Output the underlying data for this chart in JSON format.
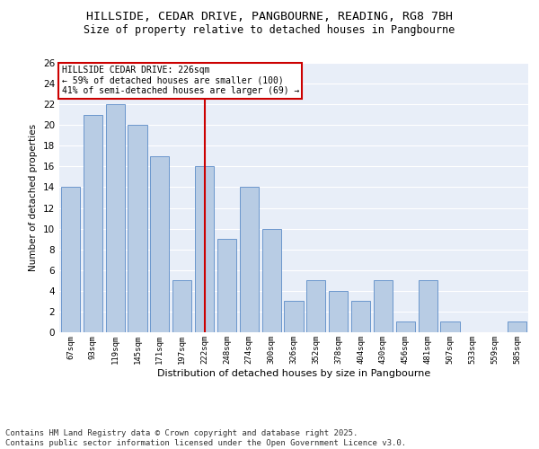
{
  "title": "HILLSIDE, CEDAR DRIVE, PANGBOURNE, READING, RG8 7BH",
  "subtitle": "Size of property relative to detached houses in Pangbourne",
  "xlabel": "Distribution of detached houses by size in Pangbourne",
  "ylabel": "Number of detached properties",
  "categories": [
    "67sqm",
    "93sqm",
    "119sqm",
    "145sqm",
    "171sqm",
    "197sqm",
    "222sqm",
    "248sqm",
    "274sqm",
    "300sqm",
    "326sqm",
    "352sqm",
    "378sqm",
    "404sqm",
    "430sqm",
    "456sqm",
    "481sqm",
    "507sqm",
    "533sqm",
    "559sqm",
    "585sqm"
  ],
  "values": [
    14,
    21,
    22,
    20,
    17,
    5,
    16,
    9,
    14,
    10,
    3,
    5,
    4,
    3,
    5,
    1,
    5,
    1,
    0,
    0,
    1
  ],
  "bar_color": "#b8cce4",
  "bar_edge_color": "#5b8bc7",
  "vline_x": 6,
  "vline_color": "#cc0000",
  "annotation_title": "HILLSIDE CEDAR DRIVE: 226sqm",
  "annotation_line1": "← 59% of detached houses are smaller (100)",
  "annotation_line2": "41% of semi-detached houses are larger (69) →",
  "annotation_box_color": "#cc0000",
  "ylim": [
    0,
    26
  ],
  "yticks": [
    0,
    2,
    4,
    6,
    8,
    10,
    12,
    14,
    16,
    18,
    20,
    22,
    24,
    26
  ],
  "background_color": "#e8eef8",
  "footer": "Contains HM Land Registry data © Crown copyright and database right 2025.\nContains public sector information licensed under the Open Government Licence v3.0.",
  "title_fontsize": 9.5,
  "subtitle_fontsize": 8.5,
  "footer_fontsize": 6.5
}
